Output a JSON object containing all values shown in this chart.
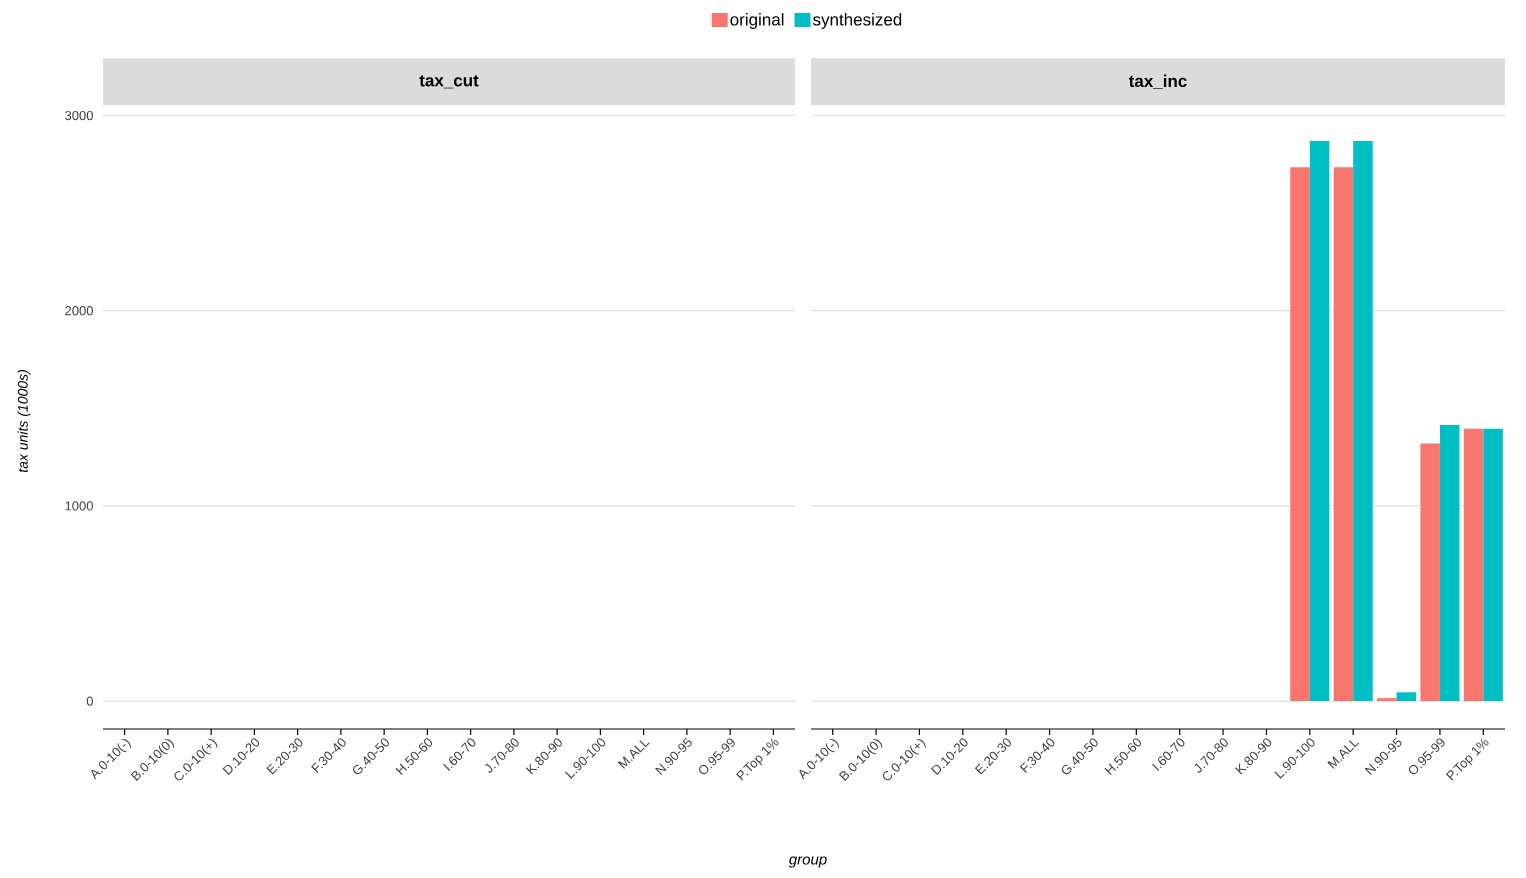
{
  "chart_data": [
    {
      "type": "bar",
      "title": "tax_cut",
      "xlabel": "group",
      "ylabel": "tax units (1000s)",
      "categories": [
        "A.0-10(-)",
        "B.0-10(0)",
        "C.0-10(+)",
        "D.10-20",
        "E.20-30",
        "F.30-40",
        "G.40-50",
        "H.50-60",
        "I.60-70",
        "J.70-80",
        "K.80-90",
        "L.90-100",
        "M.ALL",
        "N.90-95",
        "O.95-99",
        "P.Top 1%"
      ],
      "series": [
        {
          "name": "original",
          "color": "#f8766d",
          "values": [
            0,
            0,
            0,
            0,
            0,
            0,
            0,
            0,
            0,
            0,
            0,
            0,
            0,
            0,
            0,
            0
          ]
        },
        {
          "name": "synthesized",
          "color": "#00bfc4",
          "values": [
            0,
            0,
            0,
            0,
            0,
            0,
            0,
            0,
            0,
            0,
            0,
            0,
            0,
            0,
            0,
            0
          ]
        }
      ],
      "ylim": [
        -143,
        3013
      ],
      "yticks": [
        0,
        1000,
        2000,
        3000
      ],
      "grid": "y",
      "legend": "top"
    },
    {
      "type": "bar",
      "title": "tax_inc",
      "categories": [
        "A.0-10(-)",
        "B.0-10(0)",
        "C.0-10(+)",
        "D.10-20",
        "E.20-30",
        "F.30-40",
        "G.40-50",
        "H.50-60",
        "I.60-70",
        "J.70-80",
        "K.80-90",
        "L.90-100",
        "M.ALL",
        "N.90-95",
        "O.95-99",
        "P.Top 1%"
      ],
      "series": [
        {
          "color": "#f8766d",
          "values": [
            0,
            0,
            0,
            0,
            0,
            0,
            0,
            0,
            0,
            0,
            0,
            2735,
            2735,
            15,
            1320,
            1395
          ]
        },
        {
          "color": "#00bfc4",
          "values": [
            0,
            0,
            0,
            0,
            0,
            0,
            0,
            0,
            0,
            0,
            0,
            2870,
            2870,
            45,
            1415,
            1395
          ]
        }
      ],
      "ylim": [
        -143,
        3013
      ],
      "yticks": [
        0,
        1000,
        2000,
        3000
      ],
      "grid": "y",
      "tick_labels": "x"
    }
  ]
}
